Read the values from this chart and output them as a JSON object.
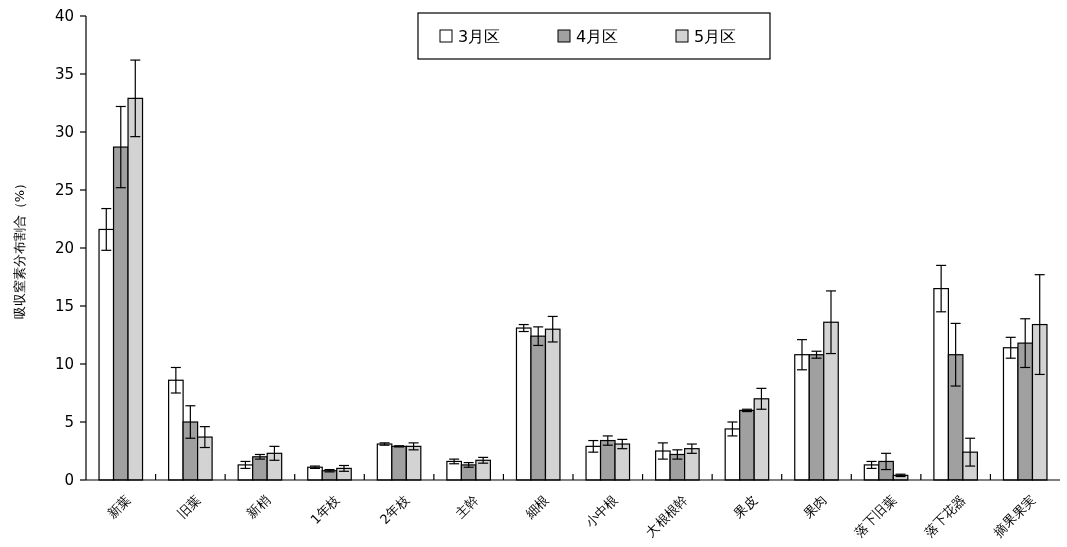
{
  "chart_data": {
    "type": "bar",
    "ylabel": "吸収窒素分布割合（%）",
    "categories": [
      "新葉",
      "旧葉",
      "新梢",
      "1年枝",
      "2年枝",
      "主幹",
      "細根",
      "小中根",
      "大根根幹",
      "果皮",
      "果肉",
      "落下旧葉",
      "落下花器",
      "摘果果実"
    ],
    "series": [
      {
        "name": "3月区",
        "color": "#ffffff",
        "values": [
          21.6,
          8.6,
          1.3,
          1.1,
          3.1,
          1.6,
          13.1,
          2.9,
          2.5,
          4.4,
          10.8,
          1.3,
          16.5,
          11.4
        ],
        "errors": [
          1.8,
          1.1,
          0.3,
          0.1,
          0.1,
          0.2,
          0.3,
          0.5,
          0.7,
          0.6,
          1.3,
          0.3,
          2.0,
          0.9
        ]
      },
      {
        "name": "4月区",
        "color": "#a0a0a0",
        "values": [
          28.7,
          5.0,
          2.0,
          0.8,
          2.9,
          1.3,
          12.4,
          3.4,
          2.2,
          6.0,
          10.8,
          1.6,
          10.8,
          11.8
        ],
        "errors": [
          3.5,
          1.4,
          0.2,
          0.1,
          0.05,
          0.2,
          0.8,
          0.4,
          0.4,
          0.1,
          0.3,
          0.7,
          2.7,
          2.1
        ]
      },
      {
        "name": "5月区",
        "color": "#d3d3d3",
        "values": [
          32.9,
          3.7,
          2.3,
          1.0,
          2.9,
          1.7,
          13.0,
          3.1,
          2.7,
          7.0,
          13.6,
          0.4,
          2.4,
          13.4
        ],
        "errors": [
          3.3,
          0.9,
          0.6,
          0.25,
          0.3,
          0.25,
          1.1,
          0.4,
          0.4,
          0.9,
          2.7,
          0.1,
          1.2,
          4.3
        ]
      }
    ],
    "ylim": [
      0,
      40
    ],
    "yticks": [
      0,
      5,
      10,
      15,
      20,
      25,
      30,
      35,
      40
    ],
    "grid": false,
    "legend": "top"
  }
}
